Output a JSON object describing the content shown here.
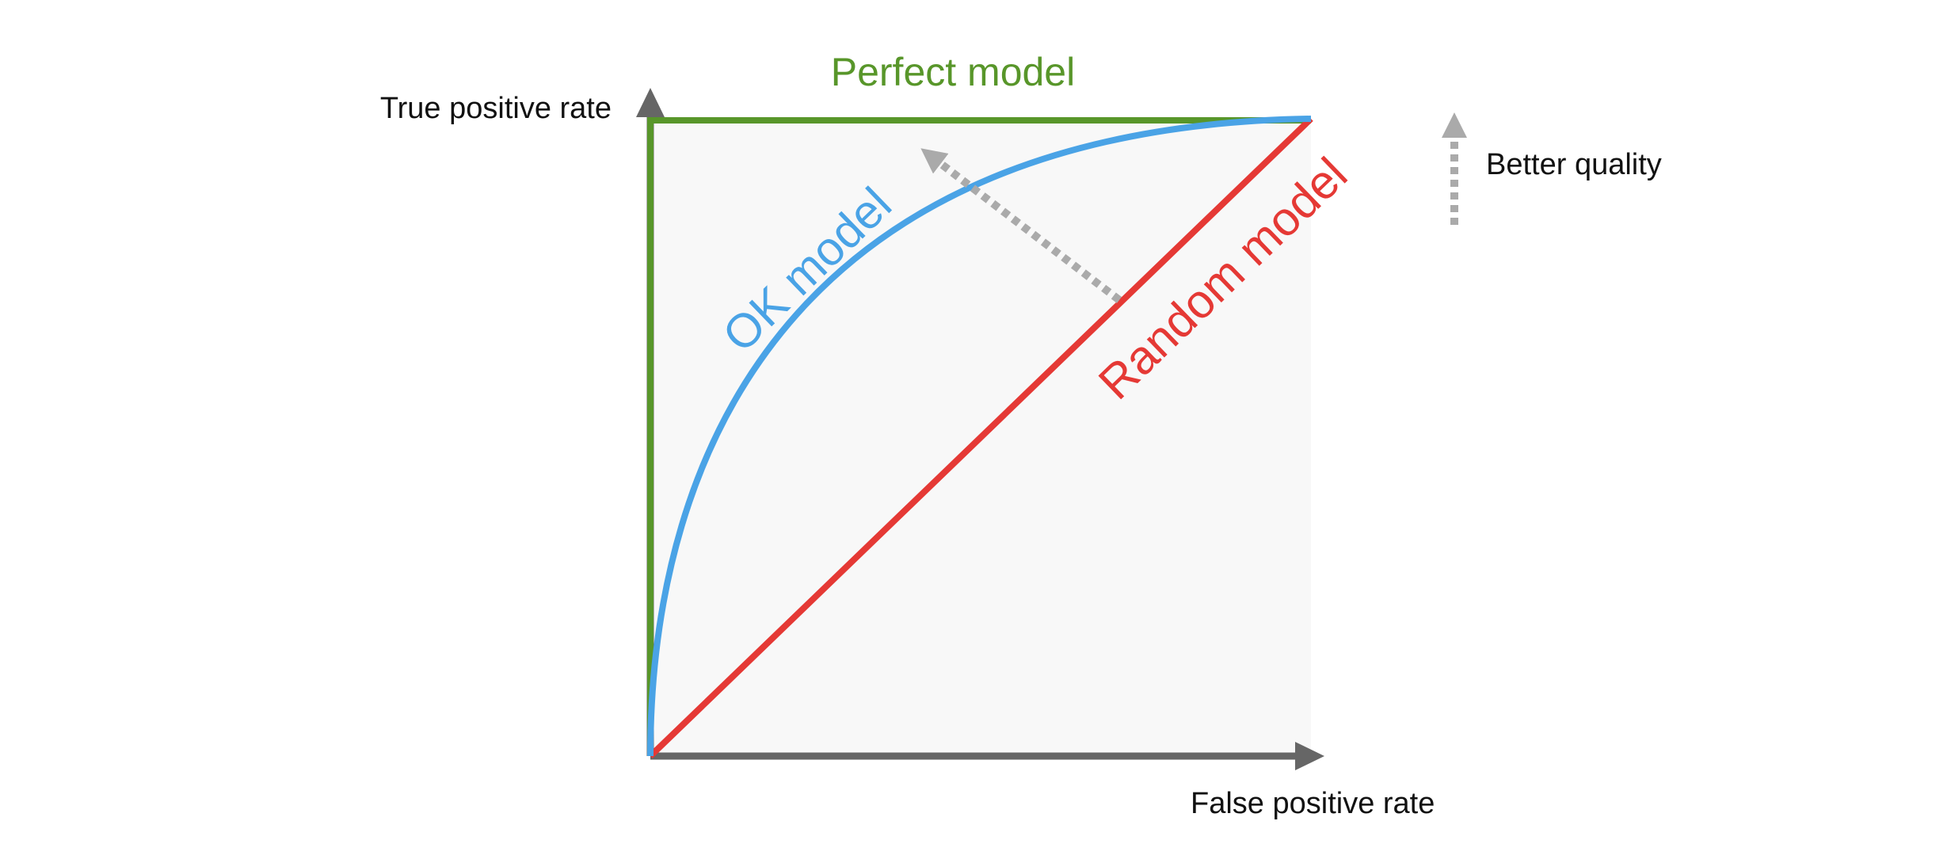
{
  "axes": {
    "y_label": "True positive rate",
    "x_label": "False positive rate"
  },
  "curves": {
    "perfect": "Perfect model",
    "ok": "OK model",
    "random": "Random model"
  },
  "legend": {
    "label": "Better quality"
  }
}
